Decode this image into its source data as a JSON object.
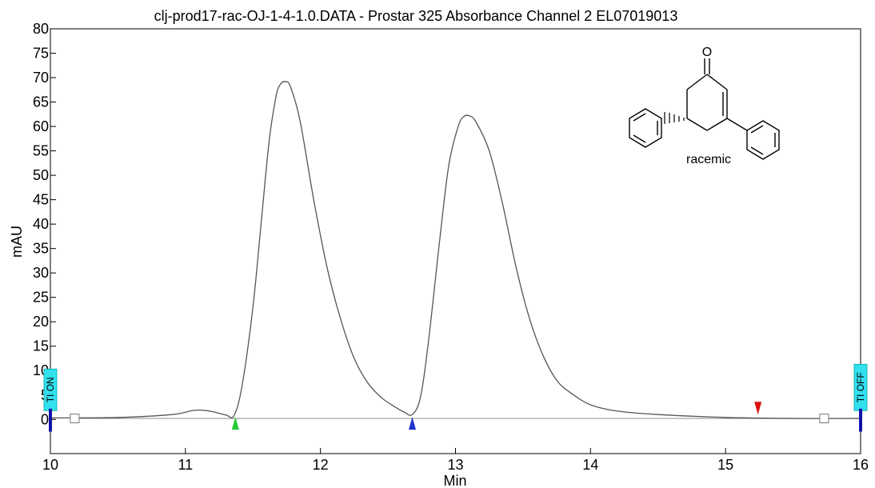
{
  "chart_data": {
    "type": "line",
    "title": "clj-prod17-rac-OJ-1-4-1.0.DATA - Prostar 325 Absorbance Channel 2 EL07019013",
    "xlabel": "Min",
    "ylabel": "mAU",
    "xlim": [
      10,
      16
    ],
    "ylim": [
      -7,
      80
    ],
    "x_ticks": [
      "10",
      "11",
      "12",
      "13",
      "14",
      "15",
      "16"
    ],
    "y_ticks": [
      "0",
      "5",
      "10",
      "15",
      "20",
      "25",
      "30",
      "35",
      "40",
      "45",
      "50",
      "55",
      "60",
      "65",
      "70",
      "75",
      "80"
    ],
    "grid": false,
    "series": [
      {
        "x": [
          10.0,
          10.5,
          10.9,
          11.05,
          11.12,
          11.2,
          11.3,
          11.36,
          11.42,
          11.5,
          11.56,
          11.62,
          11.67,
          11.7,
          11.74,
          11.78,
          11.85,
          11.95,
          12.05,
          12.15,
          12.25,
          12.35,
          12.45,
          12.55,
          12.62,
          12.68,
          12.74,
          12.8,
          12.88,
          12.95,
          13.02,
          13.06,
          13.1,
          13.15,
          13.25,
          13.35,
          13.45,
          13.55,
          13.65,
          13.75,
          13.85,
          14.0,
          14.2,
          14.5,
          15.0,
          15.5,
          16.0
        ],
        "y": [
          0.3,
          0.4,
          1.0,
          1.8,
          1.9,
          1.6,
          0.9,
          0.8,
          7.0,
          23.0,
          40.0,
          57.0,
          66.0,
          68.5,
          69.2,
          68.0,
          61.0,
          45.0,
          31.0,
          20.5,
          12.5,
          7.5,
          4.5,
          2.6,
          1.5,
          1.0,
          4.5,
          16.0,
          36.0,
          52.0,
          60.0,
          62.0,
          62.2,
          61.0,
          55.0,
          44.0,
          31.0,
          20.5,
          13.0,
          8.0,
          5.5,
          3.0,
          1.7,
          1.0,
          0.4,
          0.2,
          0.2
        ]
      }
    ],
    "baseline": [
      [
        10.2,
        0.2
      ],
      [
        15.73,
        0.2
      ]
    ],
    "markers": [
      {
        "type": "triangle-up",
        "x": 11.37,
        "y": -0.8,
        "color": "#22cc33"
      },
      {
        "type": "triangle-up",
        "x": 12.68,
        "y": -0.8,
        "color": "#2233cc"
      },
      {
        "type": "triangle-down",
        "x": 15.24,
        "y": 2.3,
        "color": "#dd1111"
      },
      {
        "type": "square",
        "x": 10.18,
        "y": 0.2
      },
      {
        "type": "square",
        "x": 15.73,
        "y": 0.2
      }
    ],
    "timers": [
      {
        "label": "TI ON",
        "x": 10.0
      },
      {
        "label": "TI OFF",
        "x": 16.0
      }
    ],
    "annotations": [
      "O",
      "racemic"
    ],
    "colors": {
      "trace": "#555555",
      "baseline": "#9a9a9a",
      "timer_fill": "#33e0ee",
      "timer_bar": "#1111aa"
    }
  }
}
